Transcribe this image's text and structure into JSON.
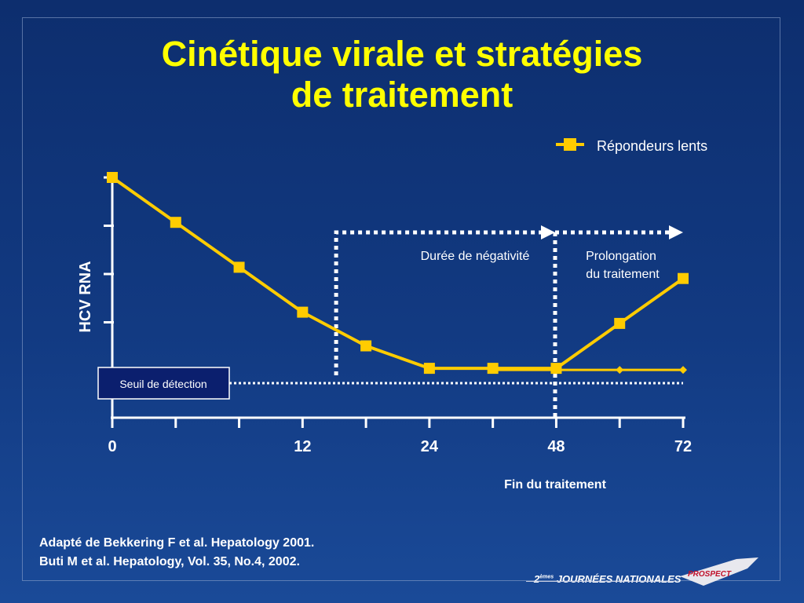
{
  "slide": {
    "title_line1": "Cinétique virale et stratégies",
    "title_line2": "de traitement",
    "footnote_line1": "Adapté de Bekkering F et al. Hepatology  2001.",
    "footnote_line2": "Buti M et al. Hepatology, Vol. 35, No.4, 2002.",
    "brand_prefix": "2",
    "brand_superscript": "èmes",
    "brand_text": "JOURNÉES NATIONALES",
    "logo_text": "PROSPECT"
  },
  "colors": {
    "background": "#123a82",
    "title": "#ffff00",
    "series": "#ffcc00",
    "text": "#ffffff",
    "threshold_box": "#0b1f6e"
  },
  "chart_data": {
    "type": "line",
    "xlabel": "",
    "ylabel": "HCV RNA",
    "x_ticks": [
      0,
      12,
      24,
      48,
      72
    ],
    "xlim": [
      0,
      72
    ],
    "y_ticks_count": 5,
    "legend_position": "top-right",
    "series": [
      {
        "name": "Répondeurs lents",
        "x": [
          0,
          8,
          16,
          24,
          32,
          40,
          48,
          56,
          64,
          72
        ],
        "y": [
          5.0,
          4.0,
          3.0,
          2.0,
          1.25,
          0.75,
          0.75,
          0.75,
          1.75,
          2.75
        ]
      }
    ],
    "baseline_continuation": {
      "x": [
        48,
        56,
        64,
        72
      ],
      "y": [
        0.75,
        0.75,
        0.75,
        0.75
      ]
    },
    "detection_threshold": {
      "label": "Seuil de détection",
      "y": 0.75
    },
    "annotations": {
      "negativity_label": "Durée de négativité",
      "extension_label_line1": "Prolongation",
      "extension_label_line2": "du traitement",
      "end_label": "Fin du traitement",
      "negativity_start_x": 24,
      "end_of_treatment_x": 48
    }
  }
}
